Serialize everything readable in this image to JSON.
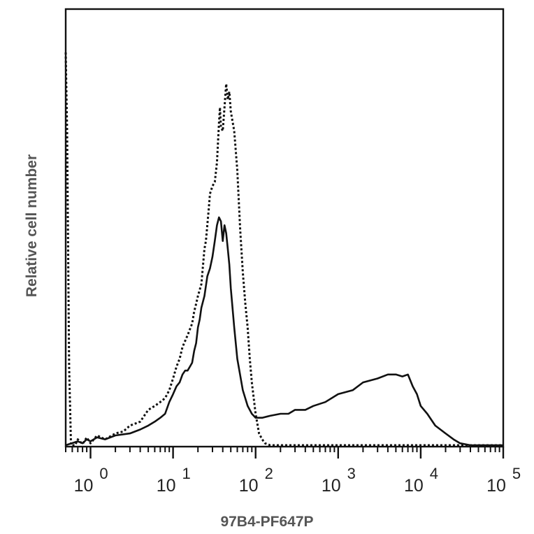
{
  "chart_data": {
    "type": "line",
    "title": "",
    "xlabel": "97B4-PF647P",
    "ylabel": "Relative cell number",
    "x_scale": "log",
    "xlim": [
      0.5,
      100000
    ],
    "ylim": [
      0,
      100
    ],
    "grid": false,
    "legend": "none",
    "x_ticks": [
      {
        "base": "10",
        "exp": "0",
        "value": 1
      },
      {
        "base": "10",
        "exp": "1",
        "value": 10
      },
      {
        "base": "10",
        "exp": "2",
        "value": 100
      },
      {
        "base": "10",
        "exp": "3",
        "value": 1000
      },
      {
        "base": "10",
        "exp": "4",
        "value": 10000
      },
      {
        "base": "10",
        "exp": "5",
        "value": 100000
      }
    ],
    "series": [
      {
        "style": "dotted",
        "color": "#111111",
        "x": [
          0.5,
          0.52,
          0.55,
          0.58,
          0.65,
          0.7,
          0.8,
          0.9,
          1.0,
          1.2,
          1.5,
          2,
          2.5,
          3,
          4,
          5,
          6,
          7,
          8,
          9,
          10,
          11,
          12,
          13,
          15,
          17,
          18,
          19,
          20,
          22,
          24,
          25,
          27,
          28,
          30,
          32,
          34,
          36,
          37,
          38,
          40,
          42,
          44,
          46,
          48,
          50,
          55,
          60,
          65,
          70,
          75,
          80,
          85,
          90,
          100,
          110,
          120,
          130,
          150,
          200,
          300,
          1000,
          10000,
          100000
        ],
        "y": [
          100,
          80,
          20,
          0,
          0,
          1.5,
          0.3,
          2,
          0.5,
          2.5,
          1.5,
          3,
          3.5,
          5,
          6,
          9,
          10,
          11,
          12,
          14,
          17,
          20,
          22,
          25,
          28,
          31,
          34,
          36,
          38,
          41,
          50,
          52,
          60,
          64,
          66,
          67,
          72,
          82,
          86,
          81,
          80,
          86,
          92,
          88,
          90,
          85,
          80,
          70,
          55,
          44,
          36,
          30,
          22,
          16,
          8,
          3,
          1.5,
          0.5,
          0,
          0,
          0,
          0,
          0,
          0
        ]
      },
      {
        "style": "solid",
        "color": "#111111",
        "x": [
          0.5,
          0.7,
          0.8,
          0.9,
          1,
          1.2,
          1.5,
          2,
          3,
          4,
          5,
          6,
          7,
          8,
          9,
          10,
          11,
          12,
          13,
          14,
          15,
          16,
          17,
          18,
          19,
          20,
          21,
          22,
          24,
          26,
          28,
          30,
          32,
          34,
          36,
          38,
          40,
          42,
          44,
          46,
          48,
          50,
          55,
          60,
          70,
          80,
          90,
          100,
          120,
          150,
          200,
          250,
          300,
          400,
          500,
          700,
          1000,
          1500,
          2000,
          3000,
          4000,
          5000,
          6000,
          7000,
          8000,
          9000,
          10000,
          12000,
          15000,
          20000,
          25000,
          30000,
          40000,
          50000,
          70000,
          100000
        ],
        "y": [
          0,
          1,
          0.5,
          1.5,
          1,
          2,
          1.5,
          2.5,
          3,
          4,
          5,
          6,
          7,
          8,
          11,
          13,
          15,
          16,
          18,
          19,
          19,
          20,
          21,
          24,
          26,
          30,
          32,
          35,
          38,
          43,
          45,
          48,
          52,
          56,
          58,
          57,
          52,
          56,
          54,
          50,
          46,
          40,
          30,
          22,
          14,
          10,
          8,
          7,
          7,
          7.5,
          8,
          8,
          9,
          9,
          10,
          11,
          13,
          14,
          16,
          17,
          18,
          18,
          17.5,
          18,
          15,
          13,
          10,
          8,
          5,
          3,
          1.5,
          0.5,
          0,
          0,
          0,
          0
        ]
      }
    ]
  }
}
